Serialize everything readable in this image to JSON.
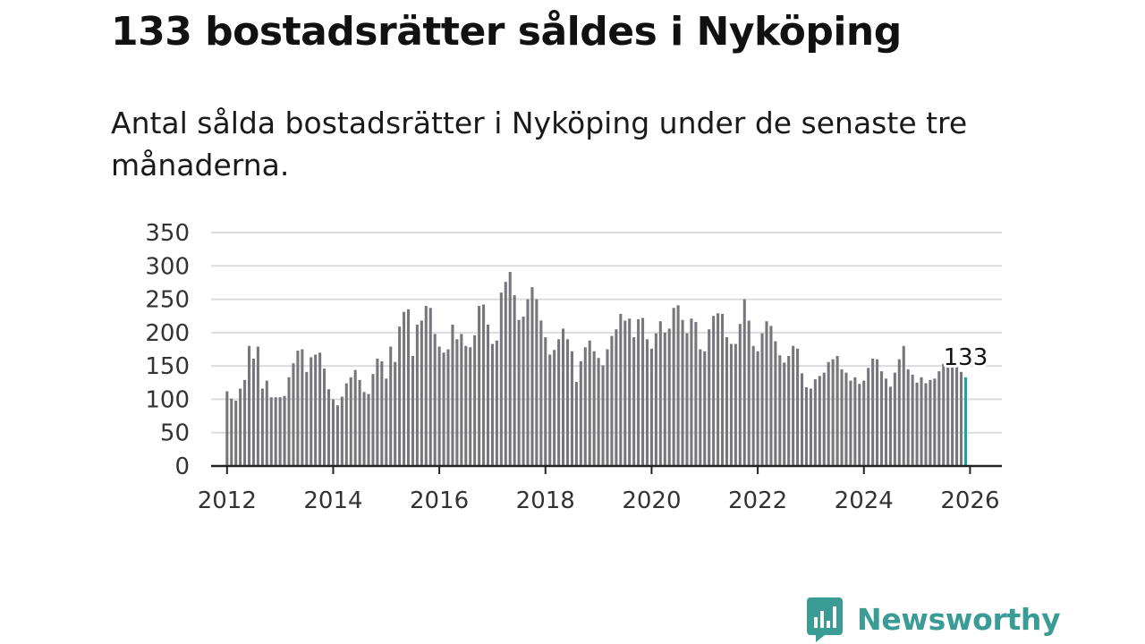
{
  "title": "133 bostadsrätter såldes i Nyköping",
  "subtitle": "Antal sålda bostadsrätter i Nyköping under de senaste tre månaderna.",
  "colors": {
    "bar": "#76767c",
    "highlight": "#14a8a0",
    "grid": "#dcdcdc",
    "axis": "#222222",
    "brand": "#3a9c95"
  },
  "chart_data": {
    "type": "bar",
    "title": "133 bostadsrätter såldes i Nyköping",
    "xlabel": "",
    "ylabel": "",
    "x_start": 2012.0,
    "x_step": 0.0833333,
    "x_range": [
      2011.7,
      2026.6
    ],
    "ylim": [
      0,
      350
    ],
    "y_ticks": [
      0,
      50,
      100,
      150,
      200,
      250,
      300,
      350
    ],
    "x_ticks": [
      2012,
      2014,
      2016,
      2018,
      2020,
      2022,
      2024,
      2026
    ],
    "grid": true,
    "highlight_last": true,
    "annotation": "133",
    "values": [
      112,
      101,
      98,
      116,
      129,
      180,
      161,
      179,
      116,
      128,
      103,
      103,
      103,
      105,
      133,
      154,
      173,
      175,
      141,
      163,
      167,
      170,
      146,
      115,
      100,
      91,
      104,
      124,
      133,
      144,
      129,
      111,
      108,
      138,
      161,
      157,
      131,
      179,
      156,
      209,
      231,
      235,
      165,
      212,
      218,
      240,
      237,
      198,
      179,
      170,
      175,
      212,
      190,
      198,
      180,
      178,
      196,
      240,
      242,
      212,
      183,
      188,
      260,
      276,
      291,
      256,
      219,
      224,
      250,
      268,
      250,
      218,
      193,
      167,
      174,
      190,
      206,
      190,
      172,
      126,
      157,
      178,
      188,
      172,
      162,
      151,
      175,
      195,
      205,
      228,
      218,
      221,
      193,
      220,
      222,
      190,
      176,
      199,
      217,
      200,
      206,
      237,
      241,
      219,
      199,
      221,
      216,
      175,
      172,
      205,
      225,
      229,
      228,
      193,
      183,
      183,
      213,
      250,
      218,
      180,
      172,
      199,
      217,
      210,
      187,
      166,
      155,
      165,
      180,
      176,
      139,
      118,
      116,
      130,
      135,
      140,
      156,
      160,
      165,
      145,
      140,
      128,
      133,
      123,
      128,
      147,
      161,
      160,
      142,
      131,
      119,
      140,
      160,
      180,
      145,
      137,
      125,
      133,
      124,
      129,
      131,
      142,
      153,
      149,
      148,
      149,
      141,
      133
    ]
  },
  "logo": {
    "text": "Newsworthy"
  }
}
